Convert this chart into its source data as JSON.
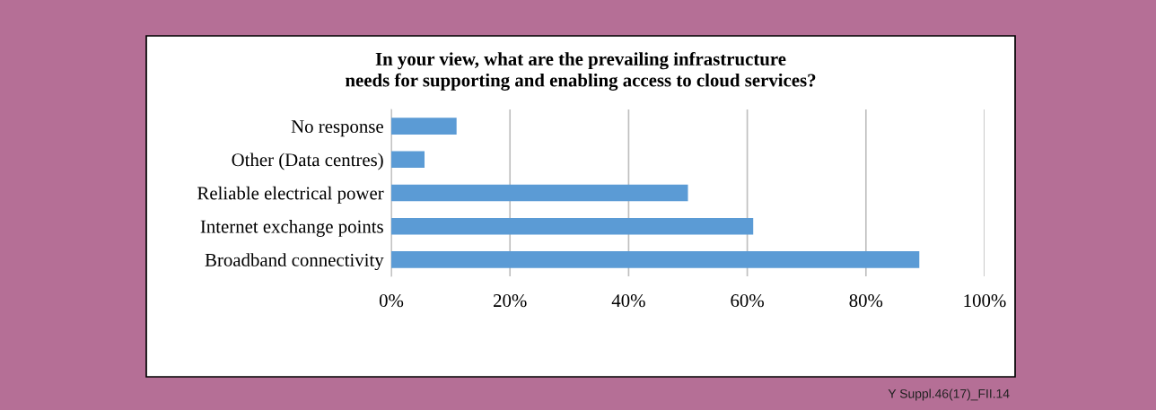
{
  "chart_data": {
    "type": "bar",
    "orientation": "horizontal",
    "title": "In your view, what are the prevailing infrastructure\nneeds for supporting and enabling access to cloud services?",
    "categories": [
      "No response",
      "Other (Data centres)",
      "Reliable electrical power",
      "Internet exchange points",
      "Broadband connectivity"
    ],
    "values": [
      11,
      5.6,
      50,
      61,
      89
    ],
    "color": "#5b9bd5",
    "xlim": [
      0,
      100
    ],
    "xticks": [
      {
        "value": 0,
        "label": "0%"
      },
      {
        "value": 20,
        "label": "20%"
      },
      {
        "value": 40,
        "label": "40%"
      },
      {
        "value": 60,
        "label": "60%"
      },
      {
        "value": 80,
        "label": "80%"
      },
      {
        "value": 100,
        "label": "100%"
      }
    ],
    "grid": "x",
    "annotations": [
      "Y Suppl.46(17)_FII.14"
    ]
  }
}
